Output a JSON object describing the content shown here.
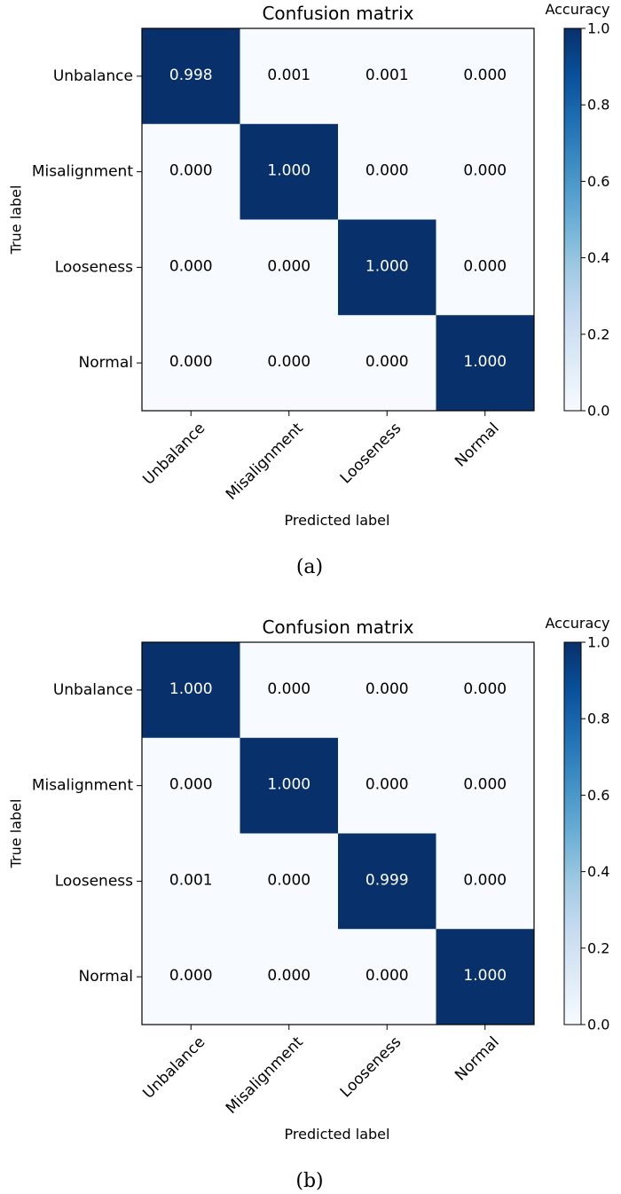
{
  "chart_data": [
    {
      "type": "heatmap",
      "title": "Confusion matrix",
      "xlabel": "Predicted label",
      "ylabel": "True label",
      "x_categories": [
        "Unbalance",
        "Misalignment",
        "Looseness",
        "Normal"
      ],
      "y_categories": [
        "Unbalance",
        "Misalignment",
        "Looseness",
        "Normal"
      ],
      "values": [
        [
          0.998,
          0.001,
          0.001,
          0.0
        ],
        [
          0.0,
          1.0,
          0.0,
          0.0
        ],
        [
          0.0,
          0.0,
          1.0,
          0.0
        ],
        [
          0.0,
          0.0,
          0.0,
          1.0
        ]
      ],
      "value_labels": [
        [
          "0.998",
          "0.001",
          "0.001",
          "0.000"
        ],
        [
          "0.000",
          "1.000",
          "0.000",
          "0.000"
        ],
        [
          "0.000",
          "0.000",
          "1.000",
          "0.000"
        ],
        [
          "0.000",
          "0.000",
          "0.000",
          "1.000"
        ]
      ],
      "colorbar": {
        "label": "Accuracy",
        "range": [
          0,
          1
        ],
        "ticks": [
          "0.0",
          "0.2",
          "0.4",
          "0.6",
          "0.8",
          "1.0"
        ],
        "colormap": "Blues",
        "color_low": "#f7fbff",
        "color_high": "#08306b"
      },
      "caption": "(a)"
    },
    {
      "type": "heatmap",
      "title": "Confusion matrix",
      "xlabel": "Predicted label",
      "ylabel": "True label",
      "x_categories": [
        "Unbalance",
        "Misalignment",
        "Looseness",
        "Normal"
      ],
      "y_categories": [
        "Unbalance",
        "Misalignment",
        "Looseness",
        "Normal"
      ],
      "values": [
        [
          1.0,
          0.0,
          0.0,
          0.0
        ],
        [
          0.0,
          1.0,
          0.0,
          0.0
        ],
        [
          0.001,
          0.0,
          0.999,
          0.0
        ],
        [
          0.0,
          0.0,
          0.0,
          1.0
        ]
      ],
      "value_labels": [
        [
          "1.000",
          "0.000",
          "0.000",
          "0.000"
        ],
        [
          "0.000",
          "1.000",
          "0.000",
          "0.000"
        ],
        [
          "0.001",
          "0.000",
          "0.999",
          "0.000"
        ],
        [
          "0.000",
          "0.000",
          "0.000",
          "1.000"
        ]
      ],
      "colorbar": {
        "label": "Accuracy",
        "range": [
          0,
          1
        ],
        "ticks": [
          "0.0",
          "0.2",
          "0.4",
          "0.6",
          "0.8",
          "1.0"
        ],
        "colormap": "Blues",
        "color_low": "#f7fbff",
        "color_high": "#08306b"
      },
      "caption": "(b)"
    }
  ]
}
